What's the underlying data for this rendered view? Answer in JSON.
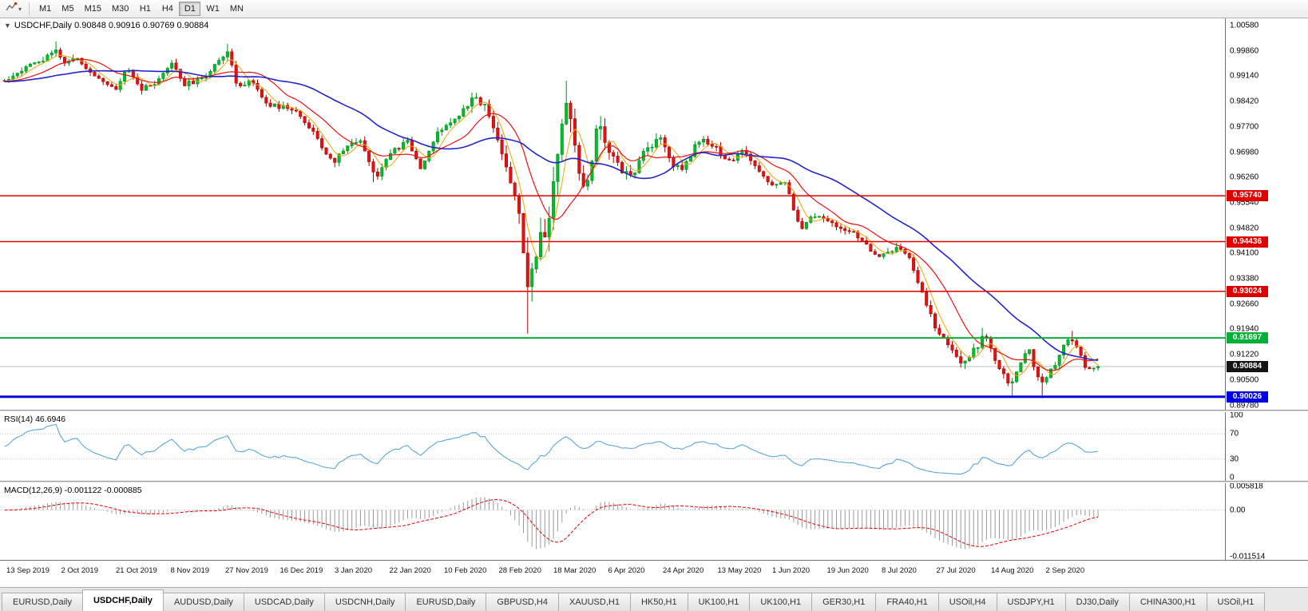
{
  "toolbar": {
    "timeframes": [
      "M1",
      "M5",
      "M15",
      "M30",
      "H1",
      "H4",
      "D1",
      "W1",
      "MN"
    ],
    "active_timeframe": "D1"
  },
  "main_chart": {
    "one_click_icon": "▼",
    "label": "USDCHF,Daily 0.90848 0.90916 0.90769 0.90884",
    "y_axis_labels": [
      "1.00580",
      "0.99860",
      "0.99140",
      "0.98420",
      "0.97700",
      "0.96980",
      "0.96260",
      "0.95540",
      "0.94820",
      "0.94100",
      "0.93380",
      "0.92660",
      "0.91940",
      "0.91220",
      "0.90500",
      "0.89780"
    ],
    "hlines": [
      {
        "price": 0.9574,
        "label": "0.95740",
        "color": "#e00000",
        "width": 1.5
      },
      {
        "price": 0.94436,
        "label": "0.94436",
        "color": "#e00000",
        "width": 1.5
      },
      {
        "price": 0.93024,
        "label": "0.93024",
        "color": "#e00000",
        "width": 1.5
      },
      {
        "price": 0.91697,
        "label": "0.91697",
        "color": "#00b135",
        "width": 2
      },
      {
        "price": 0.90026,
        "label": "0.90026",
        "color": "#0000e6",
        "width": 3
      }
    ],
    "current_price": {
      "value": 0.90884,
      "label": "0.90884",
      "badge_color": "#141414",
      "line_color": "#bcbcbc"
    }
  },
  "rsi": {
    "label": "RSI(14) 46.6946",
    "line_color": "#58a8d8",
    "axis": [
      [
        "100",
        100
      ],
      [
        "70",
        70
      ],
      [
        "30",
        30
      ],
      [
        "0",
        0
      ]
    ],
    "level_lines": [
      70,
      30
    ]
  },
  "macd": {
    "label": "MACD(12,26,9) -0.001122 -0.000885",
    "bar_color": "#9a9a9a",
    "signal_color": "#e00000",
    "axis": [
      [
        "0.005818",
        0.005818
      ],
      [
        "0.00",
        0
      ],
      [
        "-0.011514",
        -0.011514
      ]
    ]
  },
  "time_axis": {
    "dates": [
      "13 Sep 2019",
      "2 Oct 2019",
      "21 Oct 2019",
      "8 Nov 2019",
      "27 Nov 2019",
      "16 Dec 2019",
      "3 Jan 2020",
      "22 Jan 2020",
      "10 Feb 2020",
      "28 Feb 2020",
      "18 Mar 2020",
      "6 Apr 2020",
      "24 Apr 2020",
      "13 May 2020",
      "1 Jun 2020",
      "19 Jun 2020",
      "8 Jul 2020",
      "27 Jul 2020",
      "14 Aug 2020",
      "2 Sep 2020"
    ]
  },
  "tabs": {
    "active_index": 1,
    "items": [
      "EURUSD,Daily",
      "USDCHF,Daily",
      "AUDUSD,Daily",
      "USDCAD,Daily",
      "USDCNH,Daily",
      "EURUSD,Daily",
      "GBPUSD,H4",
      "XAUUSD,H1",
      "HK50,H1",
      "UK100,H1",
      "UK100,H1",
      "GER30,H1",
      "FRA40,H1",
      "USOil,H4",
      "USDJPY,H1",
      "DJ30,Daily",
      "CHINA300,H1",
      "USOil,H1"
    ]
  },
  "chart_data": {
    "type": "candlestick",
    "symbol": "USDCHF",
    "timeframe": "Daily",
    "ohlc": {
      "open": 0.90848,
      "high": 0.90916,
      "low": 0.90769,
      "close": 0.90884
    },
    "num_candles": 256,
    "y_range": {
      "top": 1.00784,
      "bottom": 0.89655
    },
    "up_fill": "#00bf2b",
    "up_stroke": "#008c1e",
    "down_fill": "#e61212",
    "down_stroke": "#a80000",
    "ma": [
      {
        "period": 5,
        "color": "#f0a500",
        "width": 1
      },
      {
        "period": 13,
        "color": "#e81111",
        "width": 1.2
      },
      {
        "period": 34,
        "color": "#2323c8",
        "width": 1.6
      }
    ],
    "indicators": {
      "rsi_period": 14,
      "macd": [
        12,
        26,
        9
      ],
      "macd_range": [
        -0.011514,
        0.005818
      ],
      "rsi_range": [
        0,
        100
      ]
    },
    "price_anchors": [
      [
        0.0,
        0.99
      ],
      [
        0.02,
        0.9945
      ],
      [
        0.035,
        0.996
      ],
      [
        0.048,
        0.9985
      ],
      [
        0.056,
        0.9945
      ],
      [
        0.064,
        0.997
      ],
      [
        0.076,
        0.993
      ],
      [
        0.09,
        0.9905
      ],
      [
        0.102,
        0.987
      ],
      [
        0.112,
        0.9935
      ],
      [
        0.125,
        0.9875
      ],
      [
        0.14,
        0.9895
      ],
      [
        0.153,
        0.995
      ],
      [
        0.165,
        0.989
      ],
      [
        0.182,
        0.9905
      ],
      [
        0.195,
        0.996
      ],
      [
        0.204,
        0.9985
      ],
      [
        0.212,
        0.989
      ],
      [
        0.226,
        0.99
      ],
      [
        0.24,
        0.9835
      ],
      [
        0.256,
        0.9825
      ],
      [
        0.272,
        0.98
      ],
      [
        0.287,
        0.973
      ],
      [
        0.3,
        0.9665
      ],
      [
        0.312,
        0.9715
      ],
      [
        0.326,
        0.9735
      ],
      [
        0.339,
        0.9625
      ],
      [
        0.352,
        0.969
      ],
      [
        0.368,
        0.973
      ],
      [
        0.381,
        0.965
      ],
      [
        0.394,
        0.9745
      ],
      [
        0.408,
        0.978
      ],
      [
        0.424,
        0.984
      ],
      [
        0.437,
        0.9845
      ],
      [
        0.447,
        0.9775
      ],
      [
        0.456,
        0.969
      ],
      [
        0.461,
        0.964
      ],
      [
        0.467,
        0.956
      ],
      [
        0.473,
        0.948
      ],
      [
        0.479,
        0.93
      ],
      [
        0.484,
        0.9375
      ],
      [
        0.489,
        0.9455
      ],
      [
        0.495,
        0.943
      ],
      [
        0.501,
        0.9575
      ],
      [
        0.507,
        0.97
      ],
      [
        0.513,
        0.986
      ],
      [
        0.519,
        0.979
      ],
      [
        0.527,
        0.9585
      ],
      [
        0.534,
        0.963
      ],
      [
        0.542,
        0.9775
      ],
      [
        0.55,
        0.972
      ],
      [
        0.562,
        0.965
      ],
      [
        0.574,
        0.9635
      ],
      [
        0.586,
        0.97
      ],
      [
        0.6,
        0.974
      ],
      [
        0.612,
        0.966
      ],
      [
        0.621,
        0.9655
      ],
      [
        0.634,
        0.973
      ],
      [
        0.646,
        0.9725
      ],
      [
        0.663,
        0.967
      ],
      [
        0.676,
        0.97
      ],
      [
        0.69,
        0.964
      ],
      [
        0.703,
        0.96
      ],
      [
        0.715,
        0.961
      ],
      [
        0.727,
        0.948
      ],
      [
        0.739,
        0.9515
      ],
      [
        0.751,
        0.951
      ],
      [
        0.766,
        0.948
      ],
      [
        0.778,
        0.947
      ],
      [
        0.791,
        0.942
      ],
      [
        0.801,
        0.94
      ],
      [
        0.816,
        0.9425
      ],
      [
        0.829,
        0.939
      ],
      [
        0.841,
        0.928
      ],
      [
        0.853,
        0.918
      ],
      [
        0.868,
        0.9135
      ],
      [
        0.876,
        0.9085
      ],
      [
        0.886,
        0.913
      ],
      [
        0.896,
        0.918
      ],
      [
        0.904,
        0.912
      ],
      [
        0.912,
        0.9075
      ],
      [
        0.92,
        0.903
      ],
      [
        0.928,
        0.909
      ],
      [
        0.936,
        0.914
      ],
      [
        0.944,
        0.907
      ],
      [
        0.95,
        0.9035
      ],
      [
        0.956,
        0.907
      ],
      [
        0.962,
        0.9105
      ],
      [
        0.968,
        0.9145
      ],
      [
        0.975,
        0.9175
      ],
      [
        0.981,
        0.914
      ],
      [
        0.987,
        0.9095
      ],
      [
        0.993,
        0.9075
      ],
      [
        1.0,
        0.9088
      ]
    ],
    "volatility_anchors": [
      [
        0.0,
        0.0016
      ],
      [
        0.4,
        0.0016
      ],
      [
        0.45,
        0.0032
      ],
      [
        0.48,
        0.0062
      ],
      [
        0.53,
        0.0048
      ],
      [
        0.58,
        0.0022
      ],
      [
        0.7,
        0.0014
      ],
      [
        0.82,
        0.0017
      ],
      [
        0.87,
        0.0022
      ],
      [
        1.0,
        0.0014
      ]
    ],
    "high_overrides": [
      [
        0.048,
        1.0013
      ],
      [
        0.204,
        1.0006
      ],
      [
        0.513,
        0.9901
      ],
      [
        0.896,
        0.9198
      ],
      [
        0.975,
        0.919
      ]
    ],
    "low_overrides": [
      [
        0.3,
        0.9655
      ],
      [
        0.339,
        0.9613
      ],
      [
        0.479,
        0.9182
      ],
      [
        0.92,
        0.9
      ],
      [
        0.95,
        0.8998
      ]
    ]
  }
}
